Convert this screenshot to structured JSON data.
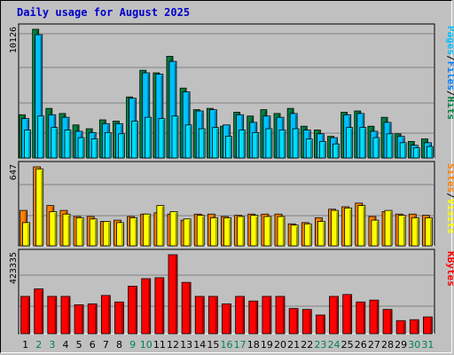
{
  "title": "Daily usage for August 2025",
  "colors": {
    "hits": "#008040",
    "files": "#00c0ff",
    "pages": "#00e0ff",
    "visits": "#ffff00",
    "sites": "#ff8000",
    "kbytes": "#ff0000",
    "weekend_day": "#00805c",
    "weekday": "#000000",
    "plot_bg": "#c0c0c0",
    "grid": "#808080"
  },
  "chart_data": [
    {
      "type": "bar",
      "ymax_label": "10126",
      "legend": [
        {
          "text": "Pages",
          "color": "#00c0ff"
        },
        {
          "text": "/",
          "color": "#000000"
        },
        {
          "text": "Files",
          "color": "#0080ff"
        },
        {
          "text": "/",
          "color": "#000000"
        },
        {
          "text": "Hits",
          "color": "#008040"
        }
      ],
      "ylim": [
        0,
        10126
      ],
      "series": [
        {
          "key": "hits",
          "values": [
            3400,
            10126,
            3900,
            3500,
            2600,
            2300,
            3000,
            2900,
            4800,
            6900,
            6700,
            8000,
            5500,
            3800,
            3900,
            2500,
            3600,
            3300,
            3800,
            3500,
            3900,
            2500,
            2200,
            1700,
            3600,
            3700,
            2500,
            3200,
            1900,
            1300,
            1500
          ]
        },
        {
          "key": "files",
          "values": [
            3100,
            9700,
            3400,
            3200,
            2100,
            2000,
            2700,
            2700,
            4700,
            6700,
            6600,
            7600,
            5200,
            3700,
            3800,
            2600,
            3400,
            2800,
            3300,
            3200,
            3500,
            2200,
            1900,
            1600,
            3400,
            3500,
            2100,
            2800,
            1700,
            1000,
            1200
          ]
        },
        {
          "key": "pages",
          "values": [
            2200,
            3300,
            2400,
            2200,
            1600,
            1500,
            2000,
            1900,
            2900,
            3200,
            3100,
            3300,
            2600,
            2300,
            2400,
            1700,
            2200,
            2000,
            2300,
            2200,
            2300,
            1500,
            1300,
            1100,
            2400,
            2400,
            1600,
            1900,
            1200,
            800,
            900
          ]
        }
      ]
    },
    {
      "type": "bar",
      "ymax_label": "647",
      "legend": [
        {
          "text": "Sites",
          "color": "#ff8000"
        },
        {
          "text": "/",
          "color": "#000000"
        },
        {
          "text": "Visits",
          "color": "#ffff00"
        }
      ],
      "ylim": [
        0,
        647
      ],
      "series": [
        {
          "key": "sites",
          "values": [
            290,
            647,
            330,
            290,
            240,
            240,
            200,
            210,
            240,
            260,
            270,
            260,
            210,
            260,
            260,
            240,
            250,
            260,
            260,
            260,
            180,
            190,
            230,
            300,
            320,
            350,
            240,
            280,
            260,
            260,
            250
          ]
        },
        {
          "key": "visits",
          "values": [
            190,
            630,
            280,
            260,
            230,
            220,
            200,
            190,
            230,
            260,
            330,
            280,
            220,
            250,
            230,
            230,
            240,
            250,
            240,
            240,
            170,
            180,
            200,
            290,
            310,
            330,
            210,
            290,
            250,
            230,
            230
          ]
        }
      ]
    },
    {
      "type": "bar",
      "ymax_label": "423335",
      "legend": [
        {
          "text": "KBytes",
          "color": "#ff0000"
        }
      ],
      "ylim": [
        0,
        423335
      ],
      "series": [
        {
          "key": "kbytes",
          "values": [
            200000,
            240000,
            200000,
            200000,
            155000,
            160000,
            205000,
            170000,
            255000,
            295000,
            300000,
            423335,
            275000,
            200000,
            200000,
            160000,
            200000,
            175000,
            200000,
            200000,
            135000,
            130000,
            100000,
            200000,
            210000,
            170000,
            180000,
            130000,
            70000,
            75000,
            90000
          ]
        }
      ]
    }
  ],
  "days": [
    "1",
    "2",
    "3",
    "4",
    "5",
    "6",
    "7",
    "8",
    "9",
    "10",
    "11",
    "12",
    "13",
    "14",
    "15",
    "16",
    "17",
    "18",
    "19",
    "20",
    "21",
    "22",
    "23",
    "24",
    "25",
    "26",
    "27",
    "28",
    "29",
    "30",
    "31"
  ],
  "weekend_days": [
    "2",
    "3",
    "9",
    "10",
    "16",
    "17",
    "23",
    "24",
    "30",
    "31"
  ]
}
